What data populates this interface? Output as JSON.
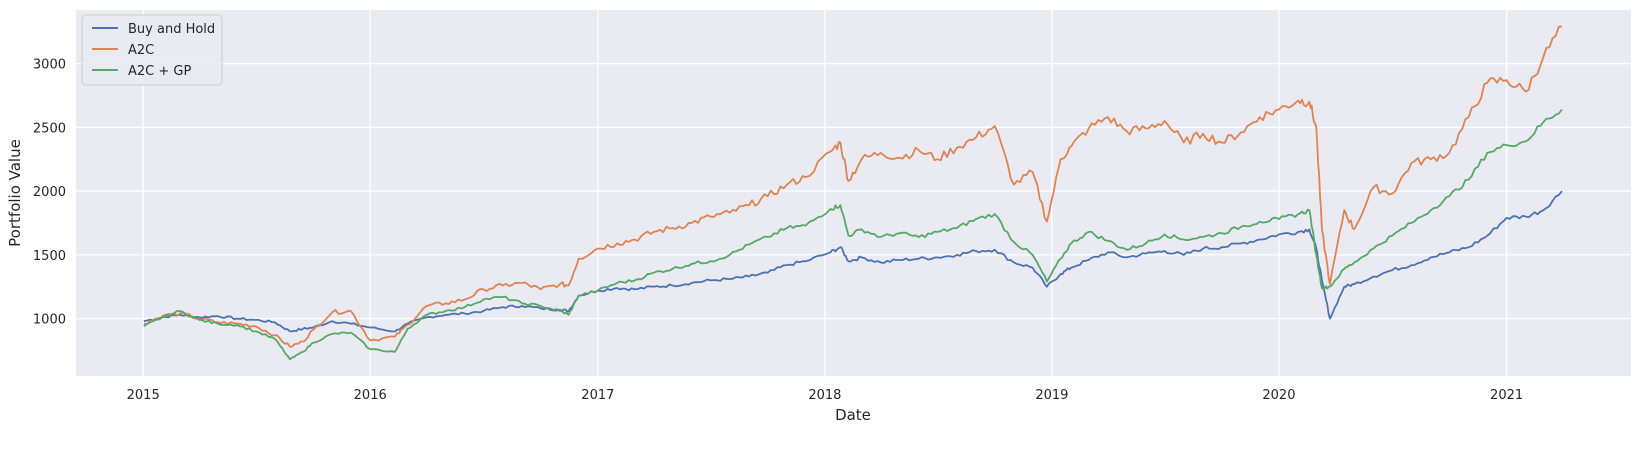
{
  "chart_data": {
    "type": "line",
    "title": "",
    "xlabel": "Date",
    "ylabel": "Portfolio Value",
    "x_ticks": [
      "2015",
      "2016",
      "2017",
      "2018",
      "2019",
      "2020",
      "2021"
    ],
    "y_ticks": [
      1000,
      1500,
      2000,
      2500,
      3000
    ],
    "xlim": [
      "2014-09-15",
      "2021-07-20"
    ],
    "ylim": [
      550,
      3420
    ],
    "grid": true,
    "legend_position": "top-left",
    "background": "#eaeaf2",
    "x": [
      "2015-01-02",
      "2015-02-01",
      "2015-03-01",
      "2015-04-01",
      "2015-05-01",
      "2015-06-01",
      "2015-07-01",
      "2015-08-01",
      "2015-08-25",
      "2015-09-15",
      "2015-10-01",
      "2015-11-01",
      "2015-12-01",
      "2016-01-01",
      "2016-02-10",
      "2016-03-01",
      "2016-04-01",
      "2016-05-01",
      "2016-06-01",
      "2016-07-01",
      "2016-08-01",
      "2016-09-01",
      "2016-10-01",
      "2016-11-01",
      "2016-11-15",
      "2016-12-01",
      "2017-01-01",
      "2017-02-01",
      "2017-03-01",
      "2017-04-01",
      "2017-05-01",
      "2017-06-01",
      "2017-07-01",
      "2017-08-01",
      "2017-09-01",
      "2017-10-01",
      "2017-11-01",
      "2017-12-01",
      "2018-01-10",
      "2018-01-26",
      "2018-02-08",
      "2018-03-01",
      "2018-04-01",
      "2018-05-01",
      "2018-06-01",
      "2018-07-01",
      "2018-08-01",
      "2018-09-01",
      "2018-10-01",
      "2018-11-01",
      "2018-12-01",
      "2018-12-24",
      "2019-01-15",
      "2019-02-01",
      "2019-03-01",
      "2019-04-01",
      "2019-05-01",
      "2019-06-01",
      "2019-07-01",
      "2019-08-01",
      "2019-09-01",
      "2019-10-01",
      "2019-11-01",
      "2019-12-01",
      "2020-01-01",
      "2020-02-01",
      "2020-02-19",
      "2020-03-01",
      "2020-03-10",
      "2020-03-23",
      "2020-04-15",
      "2020-05-01",
      "2020-06-01",
      "2020-07-01",
      "2020-08-01",
      "2020-09-01",
      "2020-10-01",
      "2020-11-01",
      "2020-12-01",
      "2021-01-01",
      "2021-02-01",
      "2021-03-01",
      "2021-03-31"
    ],
    "series": [
      {
        "name": "Buy and Hold",
        "color": "#4c72b0",
        "values": [
          980,
          1010,
          1030,
          1010,
          1020,
          1000,
          990,
          970,
          900,
          920,
          930,
          980,
          960,
          930,
          900,
          960,
          1010,
          1030,
          1040,
          1060,
          1090,
          1100,
          1080,
          1070,
          1060,
          1180,
          1220,
          1240,
          1230,
          1250,
          1260,
          1280,
          1300,
          1310,
          1330,
          1360,
          1420,
          1450,
          1520,
          1560,
          1450,
          1480,
          1440,
          1460,
          1470,
          1480,
          1500,
          1530,
          1540,
          1440,
          1400,
          1250,
          1350,
          1400,
          1460,
          1520,
          1480,
          1510,
          1530,
          1500,
          1550,
          1560,
          1590,
          1620,
          1660,
          1680,
          1700,
          1550,
          1300,
          1000,
          1250,
          1270,
          1330,
          1380,
          1420,
          1480,
          1520,
          1560,
          1650,
          1790,
          1800,
          1850,
          2000
        ]
      },
      {
        "name": "A2C",
        "color": "#dd8452",
        "values": [
          960,
          1020,
          1040,
          1000,
          970,
          960,
          940,
          870,
          780,
          820,
          910,
          1050,
          1060,
          830,
          860,
          950,
          1100,
          1120,
          1150,
          1230,
          1260,
          1280,
          1230,
          1270,
          1260,
          1470,
          1550,
          1590,
          1620,
          1680,
          1710,
          1750,
          1800,
          1830,
          1890,
          1960,
          2050,
          2110,
          2310,
          2380,
          2080,
          2250,
          2300,
          2260,
          2320,
          2250,
          2340,
          2420,
          2510,
          2050,
          2150,
          1760,
          2250,
          2350,
          2490,
          2580,
          2470,
          2490,
          2550,
          2380,
          2450,
          2380,
          2460,
          2580,
          2640,
          2710,
          2700,
          2500,
          1700,
          1270,
          1850,
          1700,
          2030,
          1980,
          2220,
          2250,
          2300,
          2580,
          2850,
          2870,
          2780,
          3050,
          3290
        ]
      },
      {
        "name": "A2C + GP",
        "color": "#55a868",
        "values": [
          940,
          1010,
          1060,
          990,
          960,
          950,
          900,
          840,
          680,
          740,
          810,
          880,
          890,
          760,
          740,
          920,
          1030,
          1060,
          1090,
          1150,
          1170,
          1120,
          1100,
          1060,
          1030,
          1180,
          1220,
          1280,
          1300,
          1360,
          1390,
          1430,
          1450,
          1500,
          1580,
          1640,
          1710,
          1730,
          1860,
          1890,
          1650,
          1700,
          1640,
          1670,
          1640,
          1680,
          1710,
          1780,
          1820,
          1600,
          1500,
          1290,
          1470,
          1590,
          1680,
          1610,
          1540,
          1590,
          1660,
          1620,
          1640,
          1670,
          1720,
          1760,
          1780,
          1820,
          1850,
          1500,
          1240,
          1250,
          1390,
          1440,
          1550,
          1650,
          1750,
          1850,
          1960,
          2090,
          2300,
          2360,
          2390,
          2540,
          2640
        ]
      }
    ]
  }
}
